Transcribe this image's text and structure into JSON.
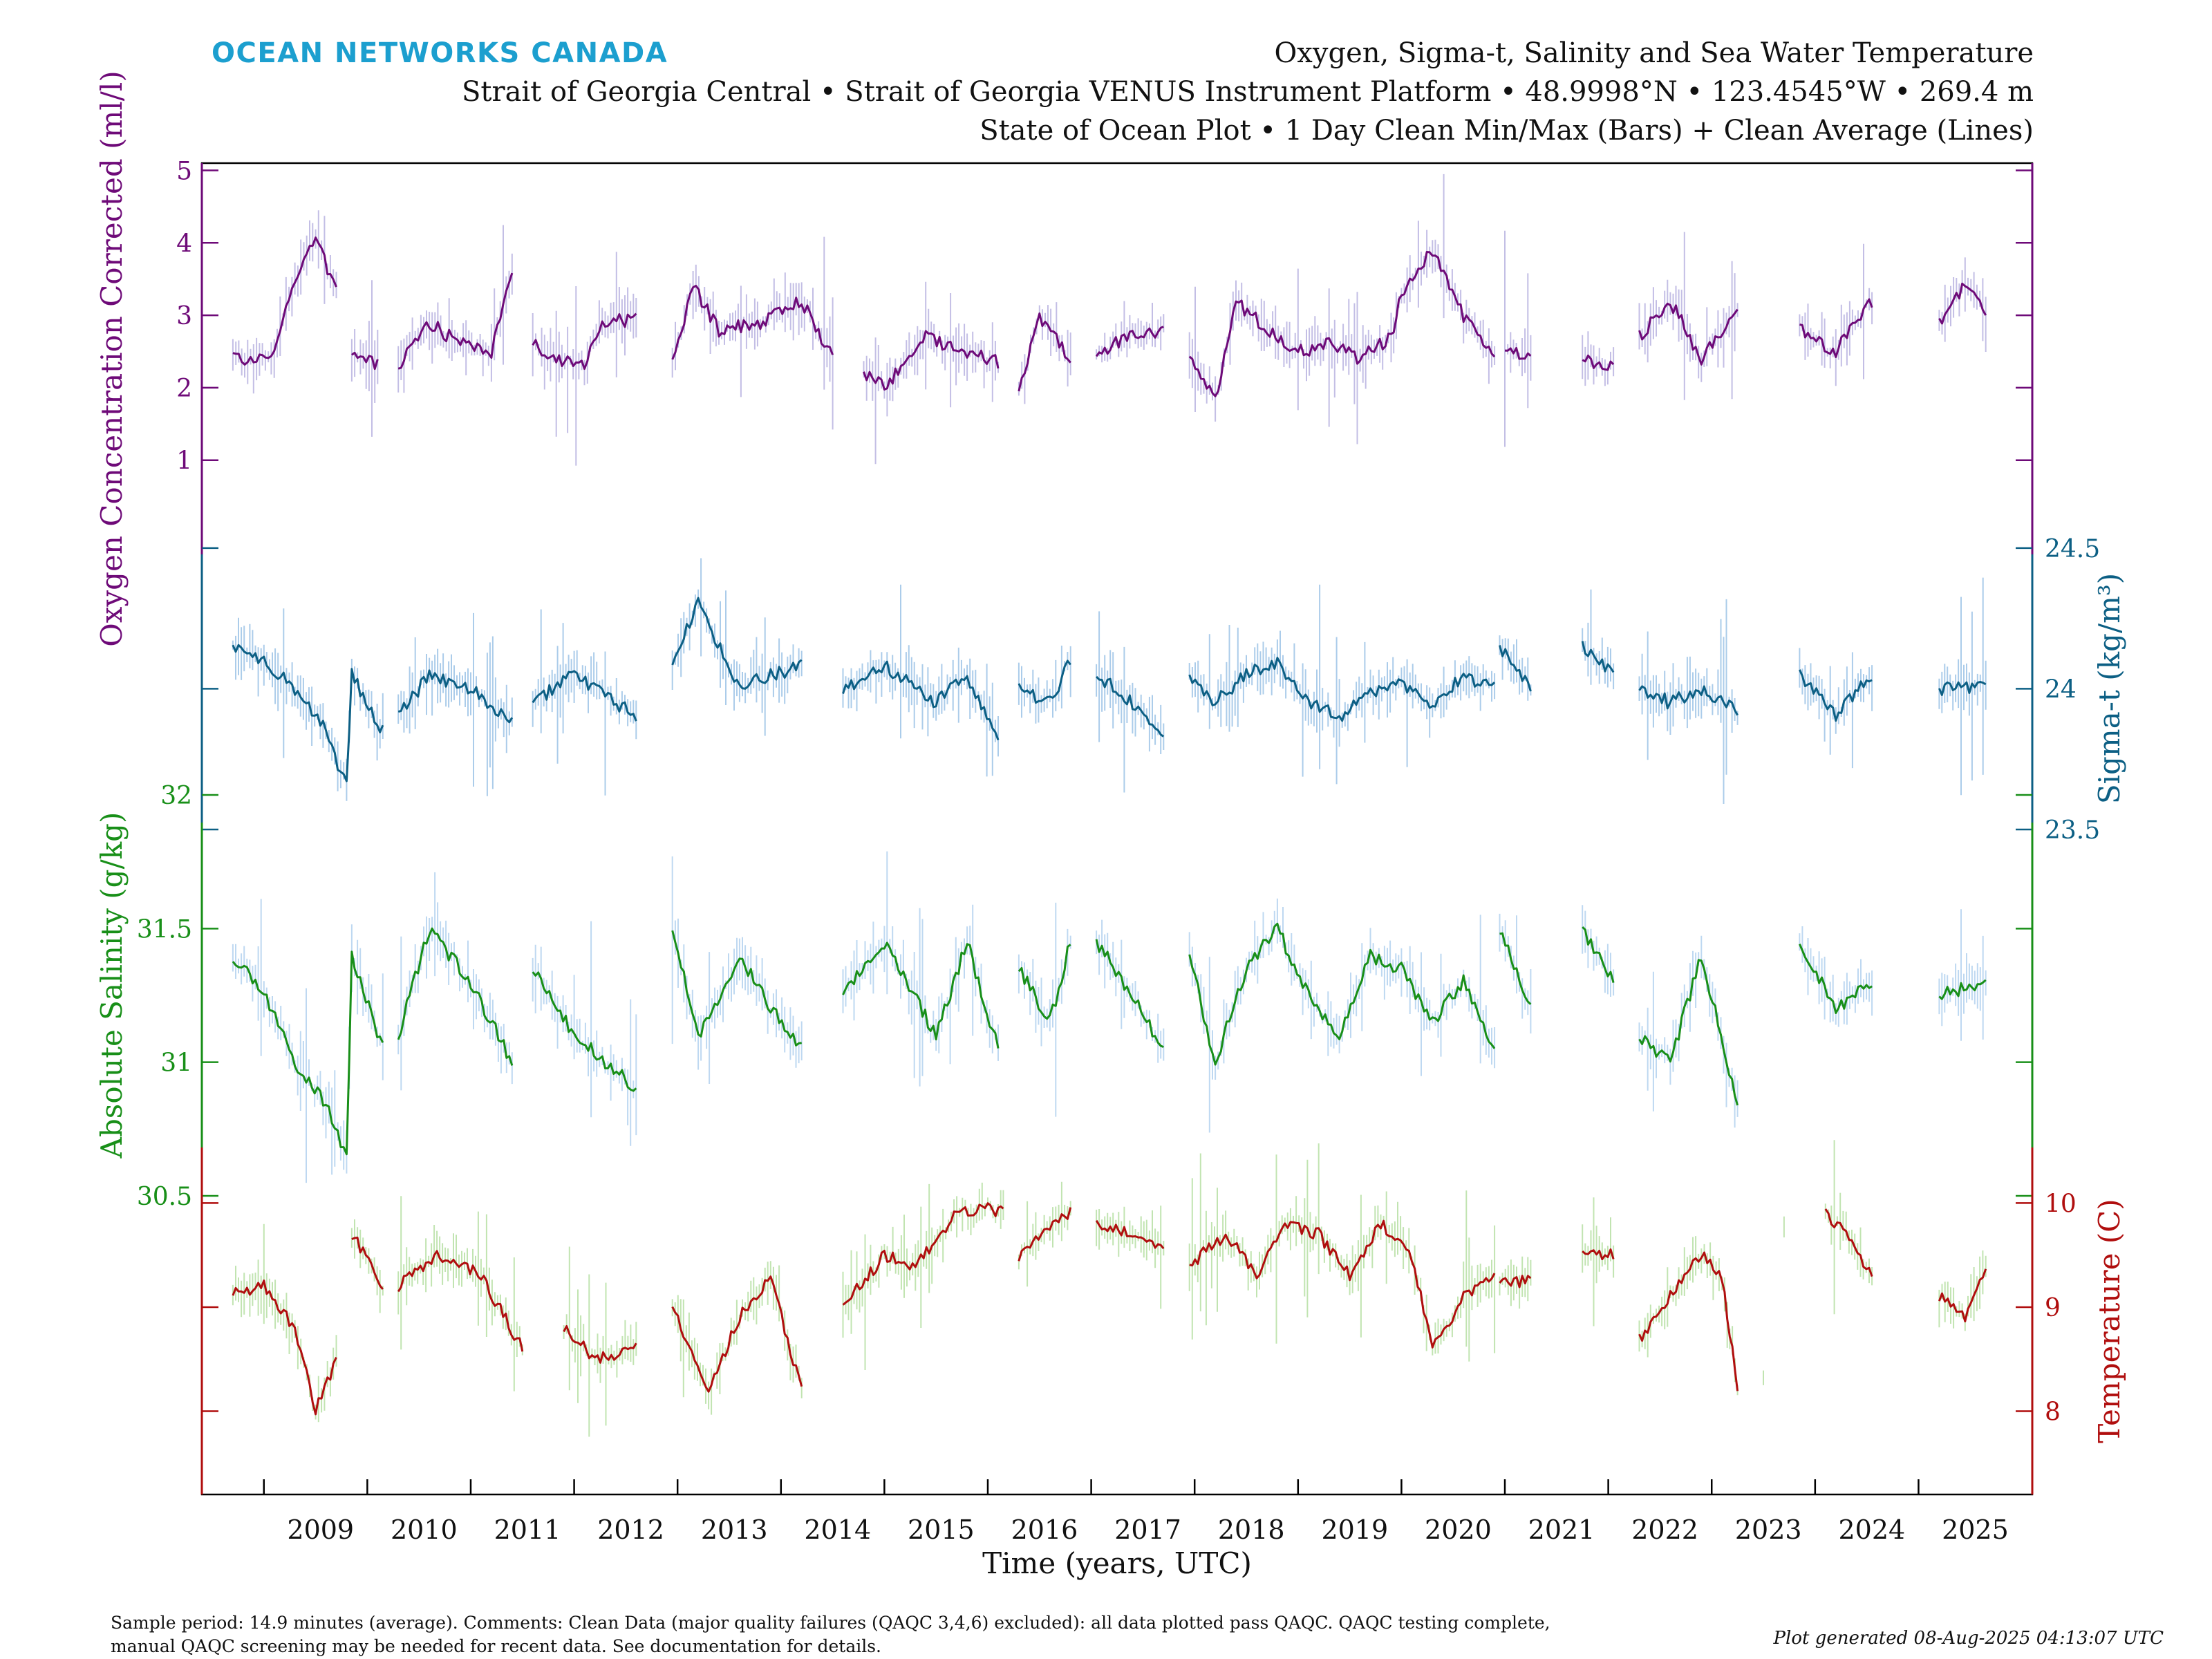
{
  "header": {
    "brand": "OCEAN NETWORKS CANADA",
    "brand_color": "#1c9fcf",
    "title_line1": "Oxygen, Sigma-t, Salinity and Sea Water Temperature",
    "title_line2": "Strait of Georgia Central • Strait of Georgia VENUS Instrument Platform • 48.9998°N • 123.4545°W • 269.4 m",
    "title_line3": "State of Ocean Plot • 1 Day Clean Min/Max (Bars) + Clean Average (Lines)"
  },
  "footer": {
    "note_line1": "Sample period: 14.9 minutes (average). Comments: Clean Data (major quality failures (QAQC 3,4,6) excluded): all data plotted pass QAQC. QAQC testing complete,",
    "note_line2": "manual QAQC screening may be needed for recent data. See documentation for details.",
    "generated": "Plot generated 08-Aug-2025 04:13:07 UTC"
  },
  "chart_data": {
    "type": "line",
    "xlabel": "Time (years, UTC)",
    "xlim": [
      2008.4,
      2026.1
    ],
    "x_ticks": [
      "2009",
      "2010",
      "2011",
      "2012",
      "2013",
      "2014",
      "2015",
      "2016",
      "2017",
      "2018",
      "2019",
      "2020",
      "2021",
      "2022",
      "2023",
      "2024",
      "2025"
    ],
    "grid": false,
    "legend": "none",
    "segments": [
      [
        2008.7,
        2009.8
      ],
      [
        2009.75,
        2010.15
      ],
      [
        2010.3,
        2011.5
      ],
      [
        2011.6,
        2012.7
      ],
      [
        2012.95,
        2014.55
      ],
      [
        2014.6,
        2016.15
      ],
      [
        2016.3,
        2016.8
      ],
      [
        2017.05,
        2017.7
      ],
      [
        2017.95,
        2020.9
      ],
      [
        2020.95,
        2021.25
      ],
      [
        2021.75,
        2022.05
      ],
      [
        2022.3,
        2023.25
      ],
      [
        2023.85,
        2024.55
      ],
      [
        2025.2,
        2025.65
      ]
    ],
    "series": [
      {
        "key": "oxygen",
        "ylabel": "Oxygen Concentration Corrected (ml/l)",
        "axis_side": "left",
        "color": "#6e0a78",
        "band_color": "#b9b3e0",
        "ylim": [
          -0.3,
          5.1
        ],
        "y_ticks": [
          1,
          2,
          3,
          4,
          5
        ],
        "x": [
          2008.7,
          2008.9,
          2009.1,
          2009.3,
          2009.5,
          2009.7,
          2009.85,
          2010.1,
          2010.3,
          2010.6,
          2010.9,
          2011.2,
          2011.4,
          2011.6,
          2011.8,
          2012.1,
          2012.3,
          2012.6,
          2012.95,
          2013.15,
          2013.4,
          2013.8,
          2014.2,
          2014.5,
          2014.8,
          2015.0,
          2015.4,
          2015.8,
          2016.1,
          2016.3,
          2016.5,
          2016.8,
          2017.05,
          2017.4,
          2017.7,
          2017.95,
          2018.2,
          2018.4,
          2018.7,
          2019.0,
          2019.3,
          2019.6,
          2019.9,
          2020.0,
          2020.3,
          2020.6,
          2020.9,
          2021.0,
          2021.25,
          2021.75,
          2022.05,
          2022.3,
          2022.6,
          2022.9,
          2023.25,
          2023.85,
          2024.2,
          2024.55,
          2025.2,
          2025.45,
          2025.65
        ],
        "values": [
          2.45,
          2.35,
          2.5,
          3.5,
          4.1,
          3.3,
          2.5,
          2.3,
          2.3,
          2.9,
          2.6,
          2.5,
          3.6,
          2.6,
          2.4,
          2.35,
          2.9,
          2.95,
          2.3,
          3.4,
          2.8,
          2.9,
          3.2,
          2.4,
          2.2,
          2.0,
          2.7,
          2.5,
          2.35,
          1.9,
          3.0,
          2.4,
          2.5,
          2.7,
          2.8,
          2.4,
          1.8,
          3.2,
          2.8,
          2.5,
          2.6,
          2.4,
          2.7,
          3.3,
          3.9,
          3.0,
          2.4,
          2.5,
          2.4,
          2.4,
          2.3,
          2.7,
          3.2,
          2.4,
          3.0,
          2.8,
          2.5,
          3.2,
          2.9,
          3.4,
          3.0
        ]
      },
      {
        "key": "sigma_t",
        "ylabel": "Sigma-t (kg/m³)",
        "axis_side": "right",
        "color": "#0c5f84",
        "band_color": "#9cc3e6",
        "ylim": [
          23.5,
          24.9
        ],
        "y_ticks": [
          23.5,
          24,
          24.5
        ],
        "x": [
          2008.7,
          2009.0,
          2009.3,
          2009.6,
          2009.8,
          2009.85,
          2010.15,
          2010.3,
          2010.6,
          2011.0,
          2011.4,
          2011.6,
          2012.0,
          2012.6,
          2012.95,
          2013.2,
          2013.6,
          2013.9,
          2014.2,
          2014.6,
          2015.0,
          2015.5,
          2015.8,
          2016.1,
          2016.3,
          2016.6,
          2016.8,
          2017.05,
          2017.4,
          2017.7,
          2017.95,
          2018.2,
          2018.5,
          2018.8,
          2019.1,
          2019.4,
          2019.7,
          2020.0,
          2020.3,
          2020.6,
          2020.9,
          2020.95,
          2021.25,
          2021.75,
          2022.05,
          2022.3,
          2022.6,
          2022.9,
          2023.25,
          2023.85,
          2024.2,
          2024.55,
          2025.2,
          2025.65
        ],
        "values": [
          24.15,
          24.1,
          24.0,
          23.85,
          23.65,
          24.05,
          23.85,
          23.9,
          24.05,
          24.0,
          23.88,
          23.95,
          24.05,
          23.9,
          24.1,
          24.3,
          24.0,
          24.05,
          24.08,
          24.0,
          24.08,
          23.95,
          24.05,
          23.8,
          24.0,
          23.95,
          24.1,
          24.05,
          23.95,
          23.85,
          24.05,
          23.95,
          24.05,
          24.1,
          23.95,
          23.9,
          23.98,
          24.02,
          23.95,
          24.05,
          24.0,
          24.15,
          24.0,
          24.15,
          24.05,
          24.0,
          23.95,
          24.0,
          23.92,
          24.05,
          23.9,
          24.05,
          24.0,
          24.0
        ]
      },
      {
        "key": "salinity",
        "ylabel": "Absolute Salinity (g/kg)",
        "axis_side": "left",
        "color": "#188f18",
        "band_color": "#b3d1ee",
        "ylim": [
          30.5,
          32.0
        ],
        "y_ticks": [
          30.5,
          31,
          31.5,
          32
        ],
        "x": [
          2008.7,
          2009.0,
          2009.3,
          2009.6,
          2009.8,
          2009.85,
          2010.15,
          2010.3,
          2010.6,
          2011.0,
          2011.4,
          2011.6,
          2012.0,
          2012.6,
          2012.95,
          2013.2,
          2013.6,
          2013.9,
          2014.2,
          2014.6,
          2015.0,
          2015.5,
          2015.8,
          2016.1,
          2016.3,
          2016.6,
          2016.8,
          2017.05,
          2017.4,
          2017.7,
          2017.95,
          2018.2,
          2018.5,
          2018.8,
          2019.1,
          2019.4,
          2019.7,
          2020.0,
          2020.3,
          2020.6,
          2020.9,
          2020.95,
          2021.25,
          2021.75,
          2022.05,
          2022.3,
          2022.6,
          2022.9,
          2023.25,
          2023.85,
          2024.2,
          2024.55,
          2025.2,
          2025.65
        ],
        "values": [
          31.4,
          31.25,
          31.0,
          30.85,
          30.65,
          31.4,
          31.05,
          31.1,
          31.5,
          31.3,
          31.0,
          31.35,
          31.1,
          30.9,
          31.5,
          31.1,
          31.4,
          31.2,
          31.05,
          31.25,
          31.45,
          31.1,
          31.45,
          31.05,
          31.35,
          31.15,
          31.45,
          31.45,
          31.25,
          31.05,
          31.4,
          31.0,
          31.35,
          31.5,
          31.25,
          31.1,
          31.4,
          31.35,
          31.15,
          31.3,
          31.05,
          31.5,
          31.2,
          31.5,
          31.3,
          31.1,
          31.0,
          31.4,
          30.85,
          31.45,
          31.2,
          31.3,
          31.25,
          31.3
        ]
      },
      {
        "key": "temperature",
        "ylabel": "Temperature (C)",
        "axis_side": "right",
        "color": "#b00e0e",
        "band_color": "#b6dfa3",
        "ylim": [
          7.2,
          10.6
        ],
        "y_ticks": [
          8,
          9,
          10
        ],
        "x": [
          2008.7,
          2009.0,
          2009.3,
          2009.5,
          2009.7,
          2009.85,
          2010.15,
          2010.3,
          2010.7,
          2011.1,
          2011.5,
          2011.9,
          2012.2,
          2012.6,
          2012.95,
          2013.3,
          2013.6,
          2013.9,
          2014.2,
          2014.6,
          2015.0,
          2015.3,
          2015.7,
          2016.0,
          2016.15,
          2016.3,
          2016.6,
          2016.8,
          2017.05,
          2017.4,
          2017.7,
          2017.95,
          2018.3,
          2018.6,
          2018.9,
          2019.2,
          2019.5,
          2019.8,
          2020.1,
          2020.3,
          2020.6,
          2020.9,
          2020.95,
          2021.25,
          2021.75,
          2022.05,
          2022.3,
          2022.6,
          2022.9,
          2023.1,
          2023.25,
          2023.5,
          2023.7,
          2024.1,
          2024.3,
          2024.55,
          2025.2,
          2025.45,
          2025.65
        ],
        "values": [
          9.15,
          9.2,
          8.8,
          8.0,
          8.5,
          9.7,
          9.2,
          9.2,
          9.5,
          9.3,
          8.6,
          8.8,
          8.5,
          8.6,
          9.0,
          8.2,
          8.9,
          9.3,
          8.2,
          9.0,
          9.5,
          9.4,
          9.9,
          9.95,
          9.9,
          9.5,
          9.8,
          9.9,
          9.8,
          9.7,
          9.6,
          9.4,
          9.7,
          9.3,
          9.8,
          9.7,
          9.3,
          9.8,
          9.5,
          8.6,
          9.1,
          9.3,
          9.25,
          9.25,
          9.55,
          9.5,
          8.7,
          9.1,
          9.5,
          9.3,
          8.2,
          8.3,
          9.8,
          9.9,
          9.7,
          9.3,
          9.1,
          8.9,
          9.4
        ]
      }
    ]
  }
}
